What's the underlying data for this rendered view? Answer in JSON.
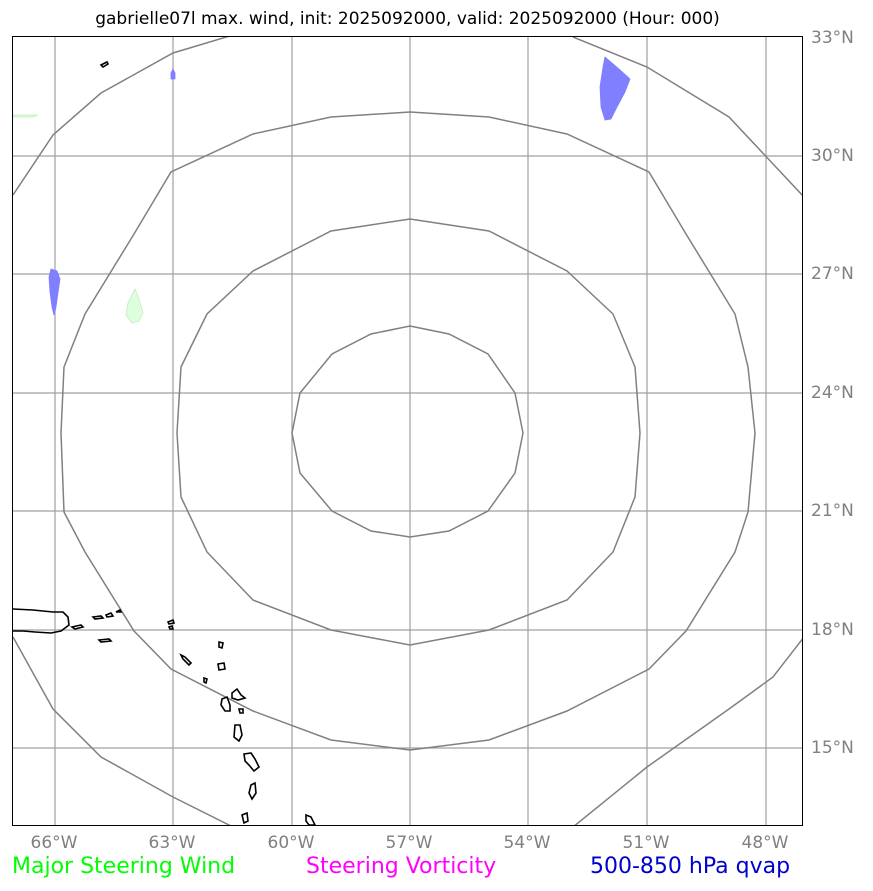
{
  "title": "gabrielle07l max. wind, init: 2025092000, valid: 2025092000 (Hour: 000)",
  "lat_labels": [
    "33°N",
    "30°N",
    "27°N",
    "24°N",
    "21°N",
    "18°N",
    "15°N"
  ],
  "lon_labels": [
    "66°W",
    "63°W",
    "60°W",
    "57°W",
    "54°W",
    "51°W",
    "48°W"
  ],
  "legend": {
    "wind": "Major Steering Wind",
    "vorticity": "Steering Vorticity",
    "qvap": "500-850 hPa qvap"
  },
  "colors": {
    "wind": "#00ff00",
    "vorticity": "#ff00ff",
    "qvap": "#0000cc",
    "grid": "#a0a0a0",
    "range_rings": "#808080",
    "coast": "#000000",
    "qvap_fill": "#7f7fff",
    "wind_fill": "#ddffdd"
  }
}
